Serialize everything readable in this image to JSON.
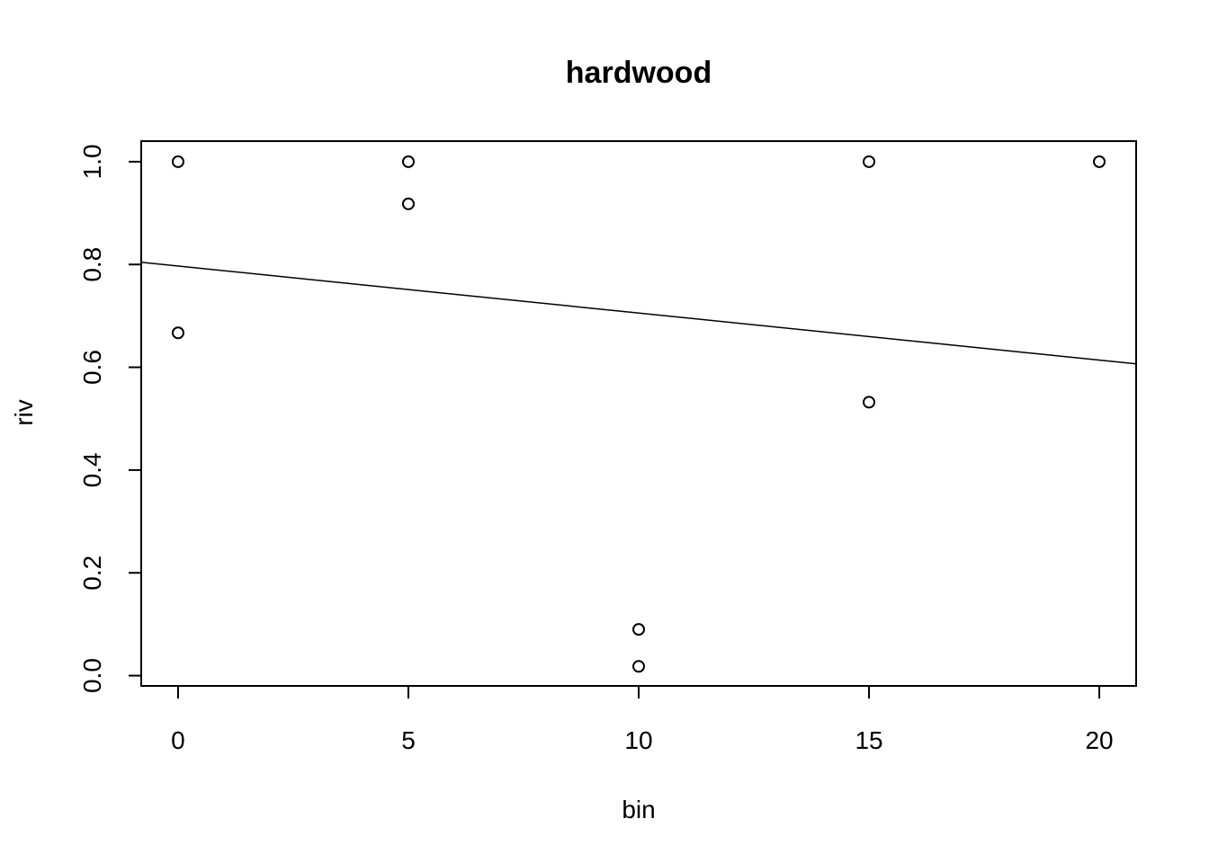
{
  "chart_data": {
    "type": "scatter",
    "title": "hardwood",
    "xlabel": "bin",
    "ylabel": "riv",
    "xlim": [
      -0.8,
      20.8
    ],
    "ylim": [
      -0.02,
      1.04
    ],
    "x_ticks": [
      0,
      5,
      10,
      15,
      20
    ],
    "x_tick_labels": [
      "0",
      "5",
      "10",
      "15",
      "20"
    ],
    "y_ticks": [
      0.0,
      0.2,
      0.4,
      0.6,
      0.8,
      1.0
    ],
    "y_tick_labels": [
      "0.0",
      "0.2",
      "0.4",
      "0.6",
      "0.8",
      "1.0"
    ],
    "grid": false,
    "points": [
      {
        "x": 0,
        "y": 1.0
      },
      {
        "x": 0,
        "y": 0.667
      },
      {
        "x": 5,
        "y": 1.0
      },
      {
        "x": 5,
        "y": 0.918
      },
      {
        "x": 10,
        "y": 0.09
      },
      {
        "x": 10,
        "y": 0.018
      },
      {
        "x": 15,
        "y": 1.0
      },
      {
        "x": 15,
        "y": 0.532
      },
      {
        "x": 20,
        "y": 1.0
      }
    ],
    "fit_line": {
      "intercept": 0.797,
      "slope": -0.00915
    }
  }
}
